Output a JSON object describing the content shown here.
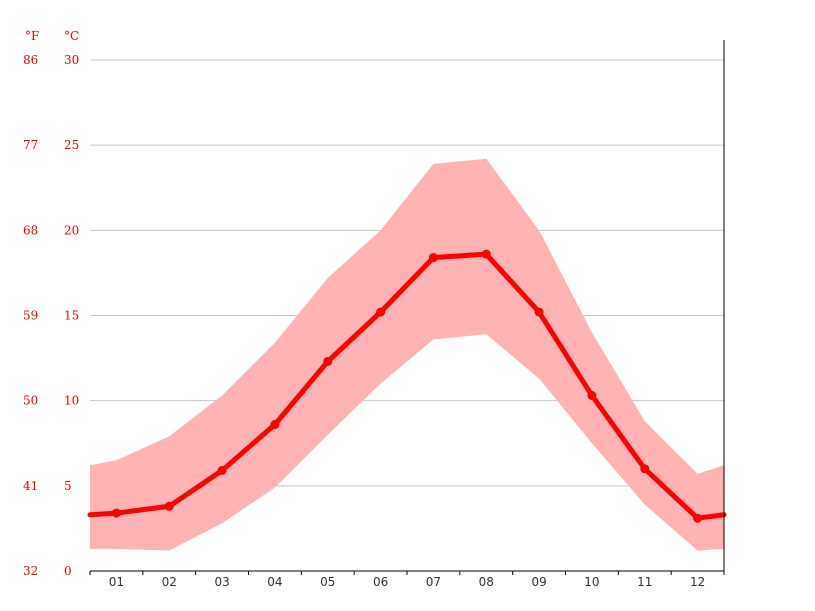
{
  "chart_data": {
    "type": "line",
    "title": "",
    "xlabel": "",
    "ylabel_left": "°F",
    "ylabel_right": "°C",
    "categories": [
      "01",
      "02",
      "03",
      "04",
      "05",
      "06",
      "07",
      "08",
      "09",
      "10",
      "11",
      "12"
    ],
    "series": [
      {
        "values": [
          3.4,
          3.8,
          5.9,
          8.6,
          12.3,
          15.2,
          18.4,
          18.6,
          15.2,
          10.3,
          6.0,
          3.1
        ]
      }
    ],
    "band": {
      "upper": [
        6.5,
        7.9,
        10.3,
        13.4,
        17.2,
        20.0,
        23.9,
        24.2,
        20.0,
        14.0,
        8.8,
        5.7
      ],
      "lower": [
        1.3,
        1.2,
        2.8,
        4.9,
        8.0,
        11.0,
        13.6,
        13.9,
        11.3,
        7.5,
        3.9,
        1.2
      ],
      "edge_left": {
        "upper": 6.2,
        "lower": 1.3
      },
      "edge_right": {
        "upper": 6.2,
        "lower": 1.3
      }
    },
    "line_edge": {
      "left": 3.3,
      "right": 3.3
    },
    "y_celsius_ticks": [
      0,
      5,
      10,
      15,
      20,
      25,
      30
    ],
    "y_fahrenheit_ticks": [
      32,
      41,
      50,
      59,
      68,
      77,
      86
    ],
    "ylim": [
      0,
      30
    ],
    "grid": true,
    "colors": {
      "line": "#ff0000",
      "band": "#ffb3b3",
      "label": "#ff0000",
      "grid": "#c8c8c8"
    }
  }
}
